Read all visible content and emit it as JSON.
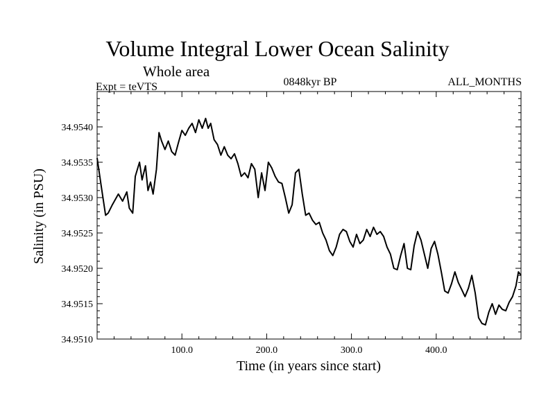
{
  "chart_data": {
    "type": "line",
    "title": "Volume Integral Lower Ocean Salinity",
    "subtitle": "Whole area",
    "experiment": "Expt = teVTS",
    "period": "0848kyr BP",
    "months": "ALL_MONTHS",
    "xlabel": "Time (in years since start)",
    "ylabel": "Salinity (in PSU)",
    "xlim": [
      0,
      500
    ],
    "ylim": [
      34.951,
      34.9545
    ],
    "xticks": [
      100,
      200,
      300,
      400
    ],
    "xtick_labels": [
      "100.0",
      "200.0",
      "300.0",
      "400.0"
    ],
    "yticks": [
      34.951,
      34.9515,
      34.952,
      34.9525,
      34.953,
      34.9535,
      34.954
    ],
    "ytick_labels": [
      "34.9510",
      "34.9515",
      "34.9520",
      "34.9525",
      "34.9530",
      "34.9535",
      "34.9540"
    ],
    "series": [
      {
        "name": "Salinity",
        "x": [
          0,
          5,
          10,
          13,
          18,
          25,
          30,
          35,
          38,
          42,
          45,
          50,
          53,
          57,
          60,
          63,
          66,
          70,
          73,
          76,
          80,
          84,
          88,
          92,
          96,
          100,
          104,
          108,
          112,
          116,
          120,
          124,
          128,
          131,
          134,
          138,
          142,
          146,
          150,
          154,
          158,
          162,
          166,
          170,
          174,
          178,
          182,
          186,
          190,
          194,
          198,
          202,
          206,
          210,
          214,
          218,
          222,
          226,
          230,
          234,
          238,
          242,
          246,
          250,
          254,
          258,
          262,
          266,
          270,
          274,
          278,
          282,
          286,
          290,
          294,
          298,
          302,
          306,
          310,
          314,
          318,
          322,
          326,
          330,
          334,
          338,
          342,
          346,
          350,
          354,
          358,
          362,
          366,
          370,
          374,
          378,
          382,
          386,
          390,
          394,
          398,
          402,
          406,
          410,
          414,
          418,
          422,
          426,
          430,
          434,
          438,
          442,
          446,
          450,
          454,
          458,
          462,
          466,
          470,
          474,
          478,
          482,
          486,
          490,
          494,
          497,
          500
        ],
        "values": [
          34.95356,
          34.95315,
          34.95275,
          34.95278,
          34.9529,
          34.95305,
          34.95295,
          34.95308,
          34.95285,
          34.95278,
          34.9533,
          34.9535,
          34.95325,
          34.95345,
          34.9531,
          34.95322,
          34.95305,
          34.9534,
          34.95392,
          34.9538,
          34.95368,
          34.9538,
          34.95365,
          34.9536,
          34.95378,
          34.95395,
          34.95388,
          34.95398,
          34.95405,
          34.95392,
          34.9541,
          34.95398,
          34.95412,
          34.95398,
          34.95405,
          34.95382,
          34.95375,
          34.9536,
          34.95372,
          34.9536,
          34.95355,
          34.95362,
          34.95348,
          34.9533,
          34.95335,
          34.95328,
          34.95348,
          34.9534,
          34.953,
          34.95335,
          34.9531,
          34.9535,
          34.95342,
          34.9533,
          34.95322,
          34.9532,
          34.953,
          34.95278,
          34.9529,
          34.95335,
          34.9534,
          34.95305,
          34.95275,
          34.95278,
          34.95268,
          34.95262,
          34.95265,
          34.9525,
          34.9524,
          34.95225,
          34.95218,
          34.9523,
          34.95248,
          34.95255,
          34.95252,
          34.95238,
          34.9523,
          34.95248,
          34.95235,
          34.9524,
          34.95255,
          34.95245,
          34.95258,
          34.95248,
          34.95252,
          34.95245,
          34.9523,
          34.9522,
          34.952,
          34.95198,
          34.95218,
          34.95235,
          34.952,
          34.95198,
          34.95232,
          34.95252,
          34.9524,
          34.9522,
          34.952,
          34.95228,
          34.95238,
          34.9522,
          34.95195,
          34.95168,
          34.95165,
          34.95178,
          34.95195,
          34.9518,
          34.9517,
          34.9516,
          34.95172,
          34.9519,
          34.95165,
          34.9513,
          34.95122,
          34.9512,
          34.95138,
          34.9515,
          34.95135,
          34.95148,
          34.95142,
          34.9514,
          34.95152,
          34.9516,
          34.95175,
          34.95195,
          34.9519
        ]
      }
    ]
  }
}
